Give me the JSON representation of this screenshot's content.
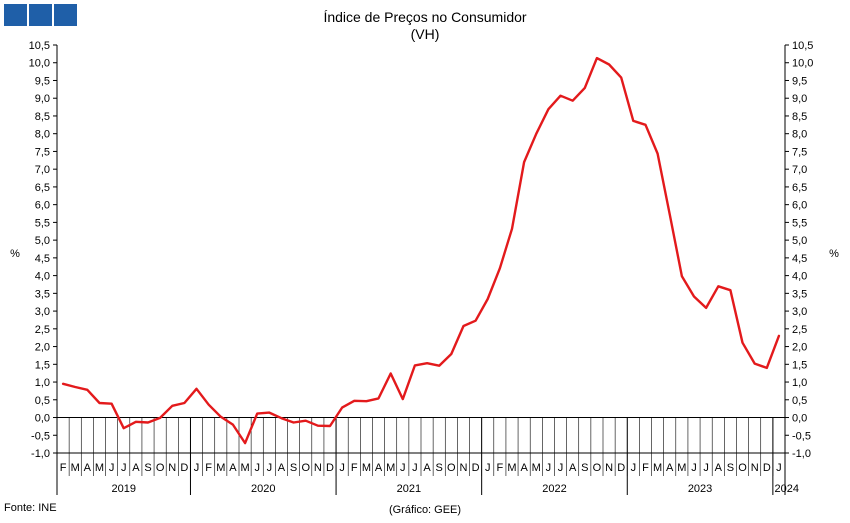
{
  "header": {
    "title": "Índice de Preços no Consumidor",
    "subtitle": "(VH)",
    "logo_color": "#1f5fa8"
  },
  "footer": {
    "source": "Fonte: INE",
    "credit": "(Gráfico: GEE)"
  },
  "chart_data": {
    "type": "line",
    "ylabel_left": "%",
    "ylabel_right": "%",
    "ylim": [
      -1.0,
      10.5
    ],
    "yticks": [
      "-1,0",
      "-0,5",
      "0,0",
      "0,5",
      "1,0",
      "1,5",
      "2,0",
      "2,5",
      "3,0",
      "3,5",
      "4,0",
      "4,5",
      "5,0",
      "5,5",
      "6,0",
      "6,5",
      "7,0",
      "7,5",
      "8,0",
      "8,5",
      "9,0",
      "9,5",
      "10,0",
      "10,5"
    ],
    "month_labels": [
      "F",
      "M",
      "A",
      "M",
      "J",
      "J",
      "A",
      "S",
      "O",
      "N",
      "D",
      "J",
      "F",
      "M",
      "A",
      "M",
      "J",
      "J",
      "A",
      "S",
      "O",
      "N",
      "D",
      "J",
      "F",
      "M",
      "A",
      "M",
      "J",
      "J",
      "A",
      "S",
      "O",
      "N",
      "D",
      "J",
      "F",
      "M",
      "A",
      "M",
      "J",
      "J",
      "A",
      "S",
      "O",
      "N",
      "D",
      "J",
      "F",
      "M",
      "A",
      "M",
      "J",
      "J",
      "A",
      "S",
      "O",
      "N",
      "D",
      "J"
    ],
    "years": [
      {
        "label": "2019",
        "months": 11
      },
      {
        "label": "2020",
        "months": 12
      },
      {
        "label": "2021",
        "months": 12
      },
      {
        "label": "2022",
        "months": 12
      },
      {
        "label": "2023",
        "months": 12
      },
      {
        "label": "2024",
        "months": 1
      }
    ],
    "grid": false,
    "line_color": "#e31a1c",
    "series": [
      {
        "values": [
          0.95,
          0.86,
          0.78,
          0.41,
          0.39,
          -0.3,
          -0.12,
          -0.14,
          -0.01,
          0.33,
          0.41,
          0.81,
          0.36,
          0.02,
          -0.2,
          -0.72,
          0.11,
          0.14,
          -0.02,
          -0.14,
          -0.09,
          -0.23,
          -0.24,
          0.28,
          0.47,
          0.46,
          0.54,
          1.24,
          0.52,
          1.47,
          1.53,
          1.46,
          1.79,
          2.58,
          2.73,
          3.34,
          4.21,
          5.32,
          7.2,
          8.0,
          8.69,
          9.07,
          8.93,
          9.29,
          10.13,
          9.95,
          9.58,
          8.36,
          8.25,
          7.44,
          5.73,
          3.98,
          3.41,
          3.09,
          3.7,
          3.59,
          2.11,
          1.52,
          1.4,
          2.3
        ]
      }
    ]
  }
}
